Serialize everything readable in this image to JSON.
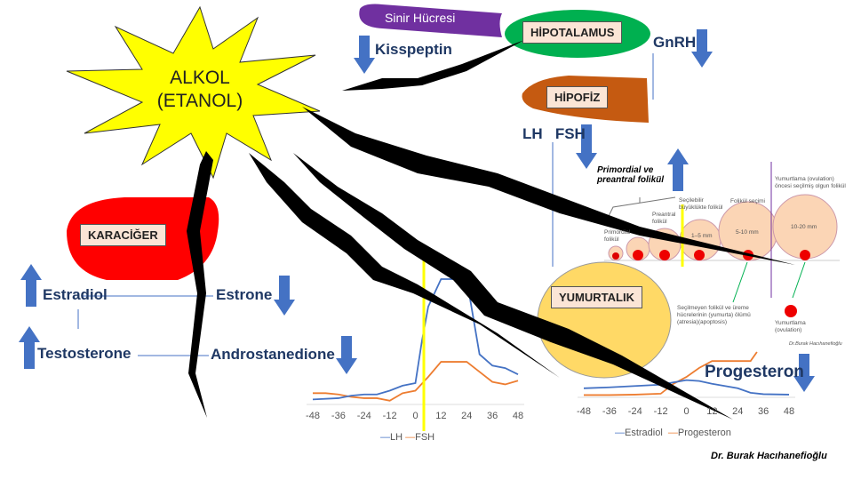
{
  "center": {
    "title_line1": "ALKOL",
    "title_line2": "(ETANOL)"
  },
  "top": {
    "neuron": "Sinir Hücresi",
    "hypothalamus": "HİPOTALAMUS",
    "kisspeptin": "Kisspeptin",
    "gnrh": "GnRH",
    "pituitary": "HİPOFİZ",
    "lh_fsh": "LH   FSH"
  },
  "liver": {
    "label": "KARACİĞER",
    "estradiol": "Estradiol",
    "estrone": "Estrone",
    "testosterone": "Testosterone",
    "androstanedione": "Androstanedione"
  },
  "ovary": {
    "label": "YUMURTALIK",
    "primordial_preantral": "Primordial ve preantral folikül",
    "primordial": "Primordial folikül",
    "preantral": "Preantral folikül",
    "selectable": "Seçilebilir büyüklükte folikül",
    "selection": "Folikül seçimi",
    "size_1": "1–5 mm",
    "size_2": "5-10 mm",
    "size_3": "10-20 mm",
    "pre_ovulation": "Yumurtlama (ovulation) öncesi seçilmiş olgun folikül",
    "atresia": "Seçilmeyen folikül ve üreme hücrelerinin (yumurta) ölümü (atresia)(apoptosis)",
    "ovulation": "Yumurtlama (ovulation)",
    "small_credit": "Dr.Burak Hacıhanefioğlu",
    "progesteron": "Progesteron"
  },
  "colors": {
    "up_down_arrow": "#4472c4",
    "lh": "#4472c4",
    "fsh": "#ed7d31",
    "star": "#ffff00",
    "liver": "#ff0000",
    "hypothalamus": "#00b050",
    "pituitary": "#c55a11",
    "neuron": "#7030a0",
    "ovary": "#ffd966"
  },
  "chart_data": [
    {
      "type": "line",
      "x_ticks": [
        "-48",
        "-36",
        "-24",
        "-12",
        "0",
        "12",
        "24",
        "36",
        "48"
      ],
      "xlim": [
        -48,
        48
      ],
      "series": [
        {
          "name": "LH",
          "color": "#4472c4",
          "x": [
            -48,
            -36,
            -30,
            -24,
            -18,
            -12,
            -6,
            0,
            3,
            6,
            12,
            24,
            27,
            30,
            36,
            42,
            48
          ],
          "y": [
            4,
            5,
            7,
            8,
            8,
            11,
            15,
            17,
            50,
            78,
            100,
            100,
            70,
            40,
            31,
            29,
            24
          ]
        },
        {
          "name": "FSH",
          "color": "#ed7d31",
          "x": [
            -48,
            -42,
            -36,
            -30,
            -24,
            -18,
            -12,
            -6,
            0,
            6,
            12,
            24,
            30,
            36,
            42,
            48
          ],
          "y": [
            9,
            9,
            8,
            6,
            5,
            5,
            3,
            9,
            11,
            22,
            34,
            34,
            26,
            18,
            16,
            19
          ]
        }
      ],
      "legend": "bottom"
    },
    {
      "type": "line",
      "x_ticks": [
        "-48",
        "-36",
        "-24",
        "-12",
        "0",
        "12",
        "24",
        "36",
        "48"
      ],
      "xlim": [
        -48,
        48
      ],
      "series": [
        {
          "name": "Estradiol",
          "color": "#4472c4",
          "x": [
            -48,
            -36,
            -24,
            -12,
            -6,
            0,
            6,
            12,
            24,
            30,
            36,
            48
          ],
          "y": [
            20,
            22,
            25,
            28,
            33,
            38,
            36,
            30,
            20,
            10,
            7,
            6
          ]
        },
        {
          "name": "Progesteron",
          "color": "#ed7d31",
          "x": [
            -48,
            -36,
            -24,
            -12,
            -6,
            0,
            6,
            12,
            24,
            30,
            33
          ],
          "y": [
            5,
            5,
            6,
            8,
            30,
            45,
            65,
            80,
            80,
            80,
            100
          ]
        }
      ],
      "legend": "bottom"
    }
  ],
  "credit": "Dr. Burak Hacıhanefioğlu"
}
